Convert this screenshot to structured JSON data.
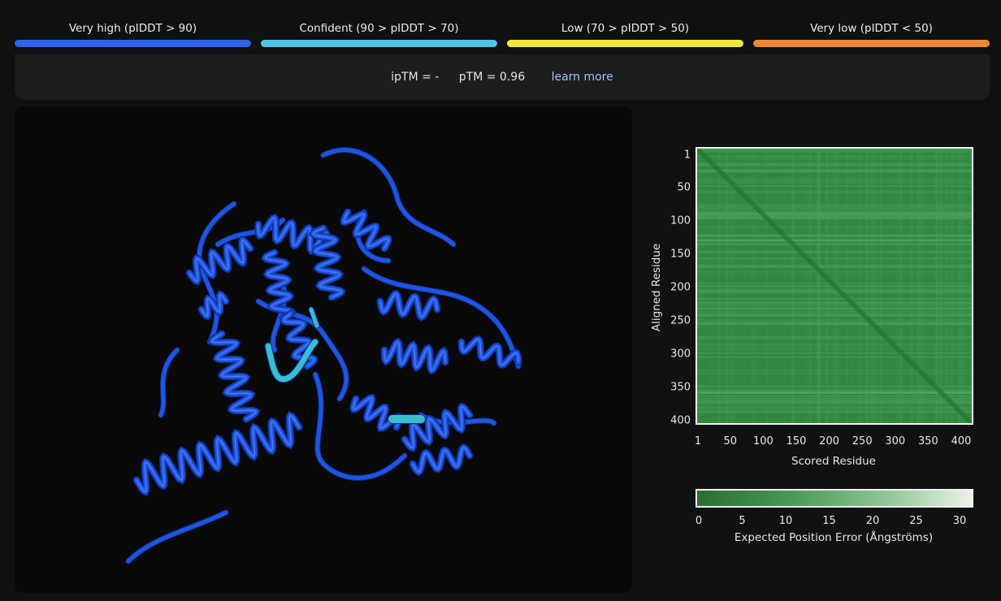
{
  "legend": [
    {
      "label": "Very high (pIDDT > 90)",
      "color": "#2f63e8"
    },
    {
      "label": "Confident (90 > pIDDT > 70)",
      "color": "#4fc3e4"
    },
    {
      "label": "Low (70 > pIDDT > 50)",
      "color": "#f4e83b"
    },
    {
      "label": "Very low (pIDDT < 50)",
      "color": "#ec8a33"
    }
  ],
  "scores": {
    "iptm": "ipTM = -",
    "ptm": "pTM = 0.96",
    "learn_more": "learn more"
  },
  "structure": {
    "main_color": "#1f55e0",
    "confident_color": "#3bbcd0"
  },
  "chart_data": {
    "type": "heatmap",
    "title": "",
    "xlabel": "Scored Residue",
    "ylabel": "Aligned Residue",
    "x_ticks": [
      "1",
      "50",
      "100",
      "150",
      "200",
      "250",
      "300",
      "350",
      "400"
    ],
    "y_ticks": [
      "1",
      "50",
      "100",
      "150",
      "200",
      "250",
      "300",
      "350",
      "400"
    ],
    "x_range": [
      1,
      405
    ],
    "y_range": [
      1,
      405
    ],
    "cell_value_summary": "near 0-2 Å everywhere, slightly lower on diagonal",
    "colorbar": {
      "label": "Expected Position Error (Ångströms)",
      "ticks": [
        "0",
        "5",
        "10",
        "15",
        "20",
        "25",
        "30"
      ],
      "range": [
        0,
        31
      ],
      "colors": [
        "#2b6d33",
        "#e9f3e7"
      ]
    }
  }
}
